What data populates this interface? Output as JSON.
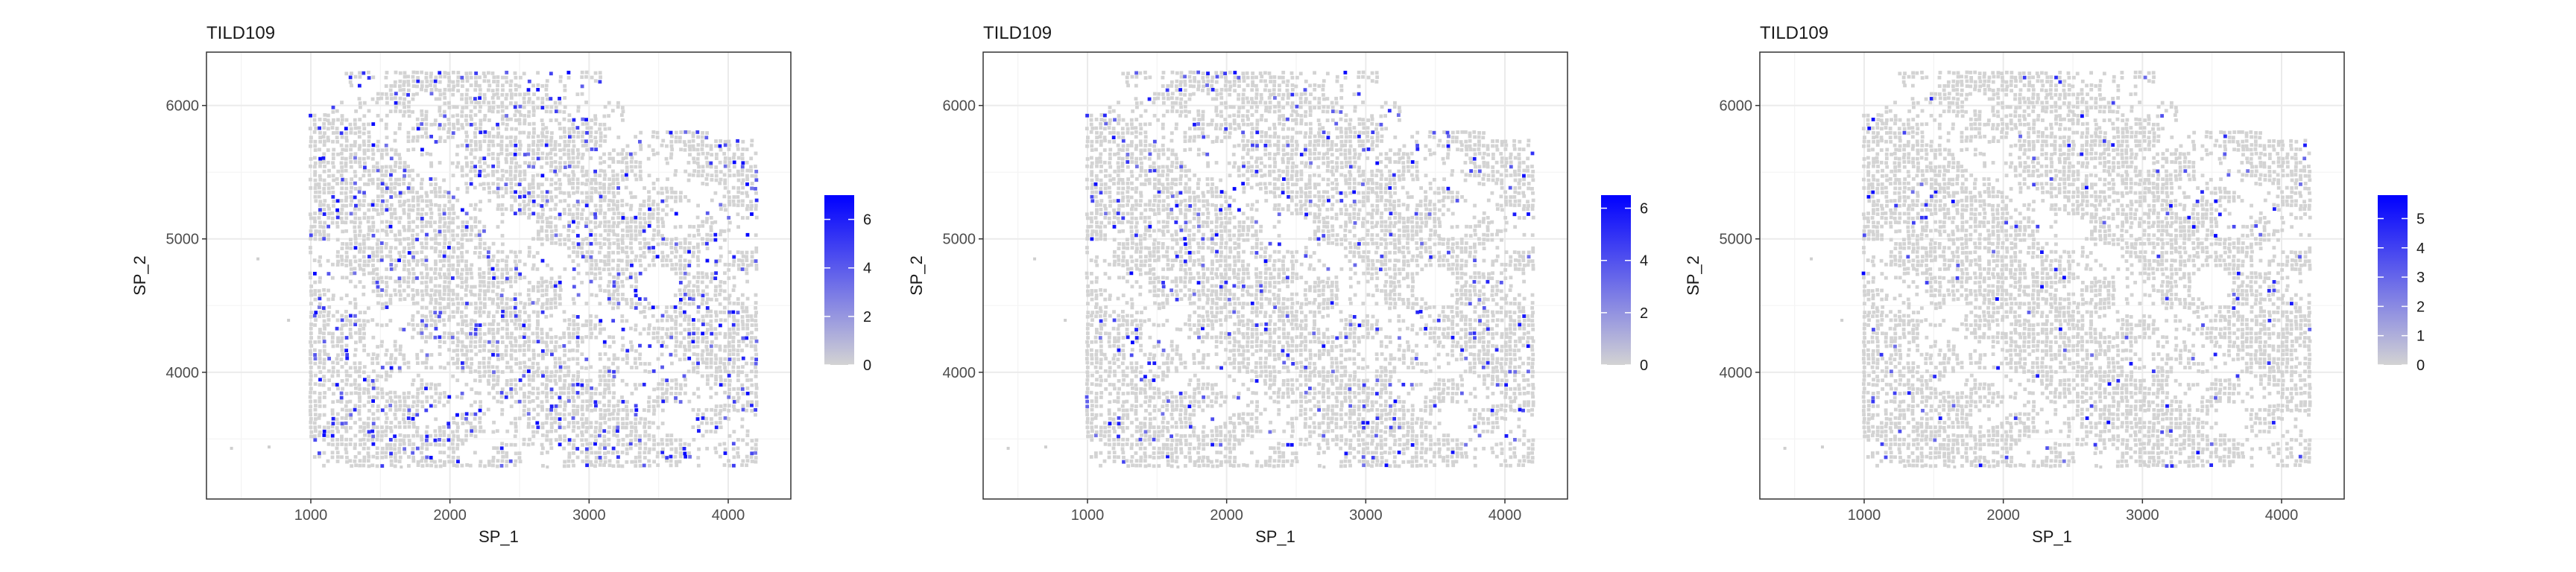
{
  "chart_data": [
    {
      "type": "scatter",
      "title": "TILD109",
      "xlabel": "SP_1",
      "ylabel": "SP_2",
      "xlim": [
        250,
        4450
      ],
      "ylim": [
        3050,
        6400
      ],
      "x_ticks": [
        1000,
        2000,
        3000,
        4000
      ],
      "y_ticks": [
        4000,
        5000,
        6000
      ],
      "grid": true,
      "legend_placement": "right",
      "colorbar": {
        "min": 0,
        "max": 7,
        "ticks": [
          0,
          2,
          4,
          6
        ],
        "low_color": "#d3d3d3",
        "high_color": "#0000ff"
      },
      "density": "high",
      "points_note": "spatial spot grid of expression values; grey = 0, blue = high"
    },
    {
      "type": "scatter",
      "title": "TILD109",
      "xlabel": "SP_1",
      "ylabel": "SP_2",
      "xlim": [
        250,
        4450
      ],
      "ylim": [
        3050,
        6400
      ],
      "x_ticks": [
        1000,
        2000,
        3000,
        4000
      ],
      "y_ticks": [
        4000,
        5000,
        6000
      ],
      "grid": true,
      "legend_placement": "right",
      "colorbar": {
        "min": 0,
        "max": 6.5,
        "ticks": [
          0,
          2,
          4,
          6
        ],
        "low_color": "#d3d3d3",
        "high_color": "#0000ff"
      },
      "density": "medium",
      "points_note": "spatial spot grid of expression values; grey = 0, blue = high"
    },
    {
      "type": "scatter",
      "title": "TILD109",
      "xlabel": "SP_1",
      "ylabel": "SP_2",
      "xlim": [
        250,
        4450
      ],
      "ylim": [
        3050,
        6400
      ],
      "x_ticks": [
        1000,
        2000,
        3000,
        4000
      ],
      "y_ticks": [
        4000,
        5000,
        6000
      ],
      "grid": true,
      "legend_placement": "right",
      "colorbar": {
        "min": 0,
        "max": 5.8,
        "ticks": [
          0,
          1,
          2,
          3,
          4,
          5
        ],
        "low_color": "#d3d3d3",
        "high_color": "#0000ff"
      },
      "density": "low",
      "points_note": "spatial spot grid of expression values; grey = 0, blue = high"
    }
  ]
}
